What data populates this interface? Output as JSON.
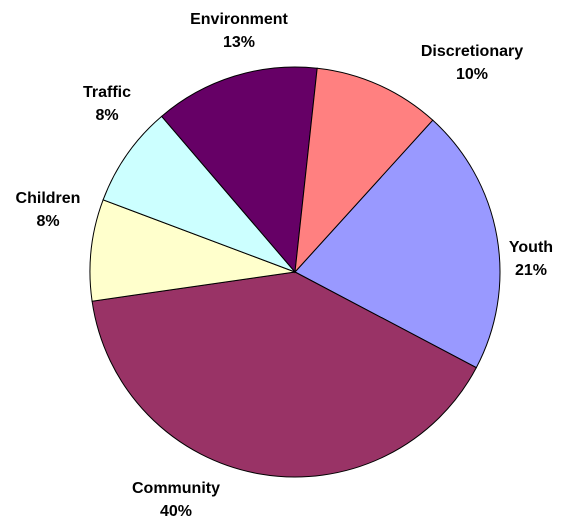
{
  "chart_data": {
    "type": "pie",
    "start_angle_deg": 0,
    "direction": "clockwise",
    "slices": [
      {
        "label": "Youth",
        "value": 21,
        "pct_label": "21%",
        "color": "#9999ff"
      },
      {
        "label": "Community",
        "value": 40,
        "pct_label": "40%",
        "color": "#993366"
      },
      {
        "label": "Children",
        "value": 8,
        "pct_label": "8%",
        "color": "#ffffcc"
      },
      {
        "label": "Traffic",
        "value": 8,
        "pct_label": "8%",
        "color": "#ccffff"
      },
      {
        "label": "Environment",
        "value": 13,
        "pct_label": "13%",
        "color": "#660066"
      },
      {
        "label": "Discretionary",
        "value": 10,
        "pct_label": "10%",
        "color": "#ff8080"
      }
    ]
  }
}
